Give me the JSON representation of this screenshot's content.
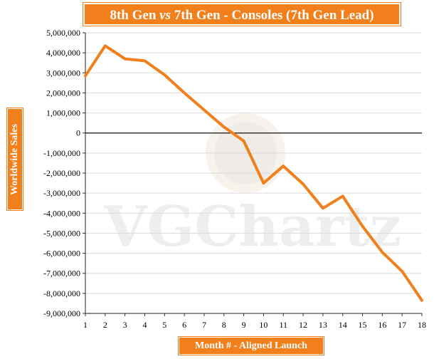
{
  "chart_data": {
    "type": "line",
    "title": "8th Gen vs 7th Gen - Consoles (7th Gen Lead)",
    "title_parts": {
      "pre": "8th Gen ",
      "em": "vs",
      "post": " 7th Gen - Consoles (7th Gen Lead)"
    },
    "xlabel": "Month # - Aligned Launch",
    "ylabel": "Worldwide Sales",
    "x": [
      1,
      2,
      3,
      4,
      5,
      6,
      7,
      8,
      9,
      10,
      11,
      12,
      13,
      14,
      15,
      16,
      17,
      18
    ],
    "series": [
      {
        "values": [
          2850000,
          4350000,
          3700000,
          3600000,
          2900000,
          2000000,
          1150000,
          300000,
          -400000,
          -2500000,
          -1650000,
          -2550000,
          -3750000,
          -3150000,
          -4650000,
          -5950000,
          -6900000,
          -8350000
        ]
      }
    ],
    "ylim": [
      -9000000,
      5000000
    ],
    "yticks": [
      5000000,
      4000000,
      3000000,
      2000000,
      1000000,
      0,
      -1000000,
      -2000000,
      -3000000,
      -4000000,
      -5000000,
      -6000000,
      -7000000,
      -8000000,
      -9000000
    ],
    "ytick_labels": [
      "5,000,000",
      "4,000,000",
      "3,000,000",
      "2,000,000",
      "1,000,000",
      "0",
      "-1,000,000",
      "-2,000,000",
      "-3,000,000",
      "-4,000,000",
      "-5,000,000",
      "-6,000,000",
      "-7,000,000",
      "-8,000,000",
      "-9,000,000"
    ],
    "xtick_labels": [
      "1",
      "2",
      "3",
      "4",
      "5",
      "6",
      "7",
      "8",
      "9",
      "10",
      "11",
      "12",
      "13",
      "14",
      "15",
      "16",
      "17",
      "18"
    ],
    "grid": true,
    "line_color": "#f07f1c",
    "accent_color": "#f07f1c",
    "watermark": "VGChartz"
  }
}
